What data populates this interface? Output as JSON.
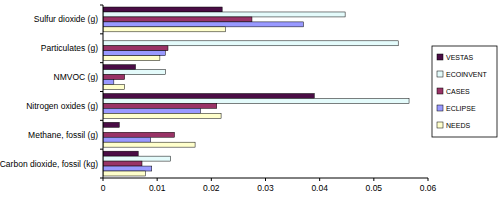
{
  "chart_data": {
    "type": "bar",
    "orientation": "horizontal",
    "grid": false,
    "legend": "right",
    "categories": [
      "Sulfur dioxide (g)",
      "Particulates (g)",
      "NMVOC (g)",
      "Nitrogen oxides (g)",
      "Methane, fossil (g)",
      "Carbon dioxide, fossil (kg)"
    ],
    "series": [
      {
        "name": "VESTAS",
        "color": "#4a0d45",
        "values": [
          0.022,
          0,
          0.006,
          0.039,
          0.003,
          0.0065
        ]
      },
      {
        "name": "ECOINVENT",
        "color": "#e4fbfb",
        "values": [
          0.0447,
          0.0545,
          0.0115,
          0.0565,
          0,
          0.0125
        ]
      },
      {
        "name": "CASES",
        "color": "#993366",
        "values": [
          0.0275,
          0.012,
          0.004,
          0.021,
          0.0132,
          0.0072
        ]
      },
      {
        "name": "ECLIPSE",
        "color": "#9999ff",
        "values": [
          0.037,
          0.0115,
          0.002,
          0.018,
          0.0088,
          0.009
        ]
      },
      {
        "name": "NEEDS",
        "color": "#ffffcc",
        "values": [
          0.0226,
          0.0105,
          0.004,
          0.0218,
          0.017,
          0.0078
        ]
      }
    ],
    "xlim": [
      0,
      0.06
    ],
    "xticks": [
      0,
      0.01,
      0.02,
      0.03,
      0.04,
      0.05,
      0.06
    ]
  }
}
